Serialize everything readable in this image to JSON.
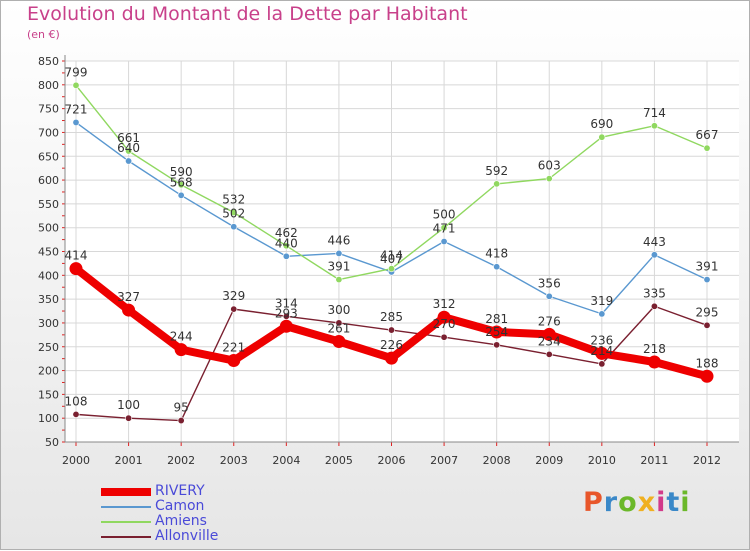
{
  "title": "Evolution du Montant de la Dette par Habitant",
  "subtitle": "(en €)",
  "logo_text": "Proxiti",
  "logo_colors": [
    "#e8562a",
    "#3a88c8",
    "#6bb82a",
    "#f0b020",
    "#d23a8a",
    "#3a88c8",
    "#6bb82a"
  ],
  "chart_data": {
    "type": "line",
    "x": [
      "2000",
      "2001",
      "2002",
      "2003",
      "2004",
      "2005",
      "2006",
      "2007",
      "2008",
      "2009",
      "2010",
      "2011",
      "2012"
    ],
    "ylim": [
      50,
      850
    ],
    "yticks": [
      50,
      100,
      150,
      200,
      250,
      300,
      350,
      400,
      450,
      500,
      550,
      600,
      650,
      700,
      750,
      800,
      850
    ],
    "grid": true,
    "legend_position": "bottom-left",
    "series": [
      {
        "name": "RIVERY",
        "color": "#ee0000",
        "emphasis": true,
        "values": [
          414,
          327,
          244,
          221,
          293,
          261,
          226,
          312,
          281,
          276,
          236,
          218,
          188
        ]
      },
      {
        "name": "Camon",
        "color": "#5a98d0",
        "values": [
          721,
          640,
          568,
          502,
          440,
          446,
          407,
          471,
          418,
          356,
          319,
          443,
          391
        ]
      },
      {
        "name": "Amiens",
        "color": "#90d860",
        "values": [
          799,
          661,
          590,
          532,
          462,
          391,
          414,
          500,
          592,
          603,
          690,
          714,
          667
        ]
      },
      {
        "name": "Allonville",
        "color": "#7a2030",
        "values": [
          108,
          100,
          95,
          329,
          314,
          300,
          285,
          270,
          254,
          234,
          214,
          335,
          295
        ]
      }
    ]
  }
}
